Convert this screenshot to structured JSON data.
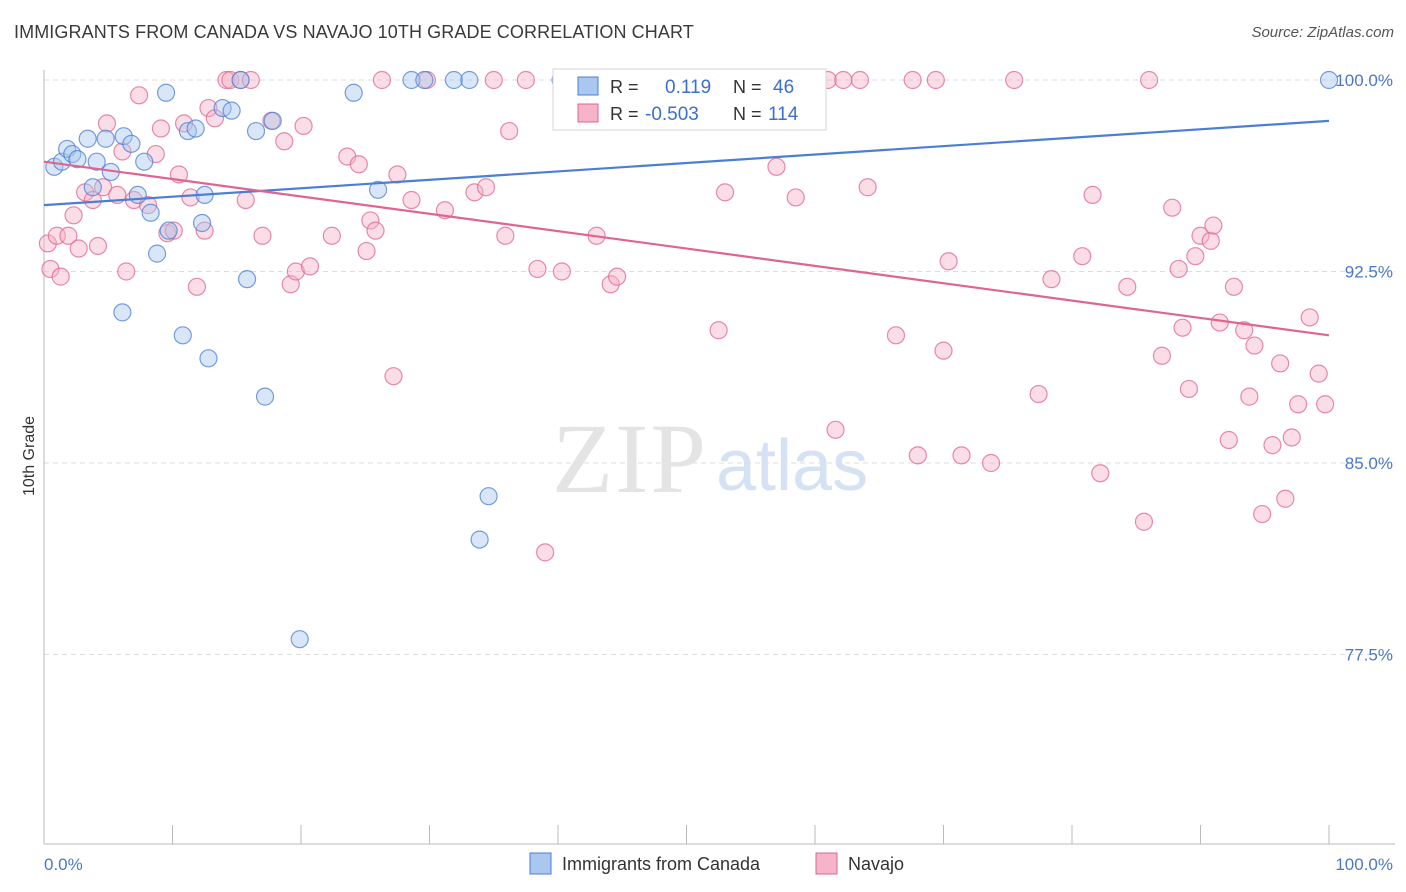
{
  "title": "IMMIGRANTS FROM CANADA VS NAVAJO 10TH GRADE CORRELATION CHART",
  "source": "Source: ZipAtlas.com",
  "watermark": {
    "zip": "ZIP",
    "atlas": "atlas"
  },
  "colors": {
    "blue": "#4a7fd4",
    "blue_fill": "#aac8ee",
    "pink": "#e06492",
    "pink_fill": "#f5b4c8",
    "grid": "#dddddd",
    "axis_label": "#4a78c8"
  },
  "legend": {
    "r_label": "R =",
    "n_label": "N =",
    "rows": [
      {
        "r": "0.119",
        "n": "46"
      },
      {
        "r": "-0.503",
        "n": "114"
      }
    ]
  },
  "chart_data": {
    "type": "scatter",
    "title": "IMMIGRANTS FROM CANADA VS NAVAJO 10TH GRADE CORRELATION CHART",
    "xlabel": "",
    "ylabel": "10th Grade",
    "xlim": [
      0,
      100
    ],
    "ylim": [
      70.0,
      100.8
    ],
    "x_tick_labels": [
      "0.0%",
      "100.0%"
    ],
    "y_ticks": [
      77.5,
      85.0,
      92.5,
      100.0
    ],
    "y_tick_labels": [
      "77.5%",
      "85.0%",
      "92.5%",
      "100.0%"
    ],
    "grid": true,
    "legend_position": "top-center",
    "series": [
      {
        "name": "Immigrants from Canada",
        "color": "#4a7fd4",
        "trend": {
          "x": [
            0,
            100
          ],
          "y": [
            95.1,
            98.4
          ]
        },
        "points": [
          [
            0.8,
            96.6
          ],
          [
            1.4,
            96.8
          ],
          [
            1.8,
            97.3
          ],
          [
            2.2,
            97.1
          ],
          [
            2.6,
            96.9
          ],
          [
            3.4,
            97.7
          ],
          [
            3.8,
            95.8
          ],
          [
            4.1,
            96.8
          ],
          [
            4.8,
            97.7
          ],
          [
            5.2,
            96.4
          ],
          [
            6.2,
            97.8
          ],
          [
            6.8,
            97.5
          ],
          [
            7.3,
            95.5
          ],
          [
            7.8,
            96.8
          ],
          [
            8.3,
            94.8
          ],
          [
            8.8,
            93.2
          ],
          [
            9.5,
            99.5
          ],
          [
            9.7,
            94.1
          ],
          [
            10.8,
            90.0
          ],
          [
            11.2,
            98.0
          ],
          [
            11.8,
            98.1
          ],
          [
            12.3,
            94.4
          ],
          [
            12.5,
            95.5
          ],
          [
            12.8,
            89.1
          ],
          [
            13.9,
            98.9
          ],
          [
            14.6,
            98.8
          ],
          [
            15.3,
            100.0
          ],
          [
            15.8,
            92.2
          ],
          [
            16.5,
            98.0
          ],
          [
            17.2,
            87.6
          ],
          [
            17.8,
            98.4
          ],
          [
            19.9,
            78.1
          ],
          [
            24.1,
            99.5
          ],
          [
            26.0,
            95.7
          ],
          [
            28.6,
            100.0
          ],
          [
            29.6,
            100.0
          ],
          [
            31.9,
            100.0
          ],
          [
            33.1,
            100.0
          ],
          [
            33.9,
            82.0
          ],
          [
            34.6,
            83.7
          ],
          [
            6.1,
            90.9
          ],
          [
            40.2,
            100.0
          ],
          [
            42.5,
            100.0
          ],
          [
            47.4,
            100.0
          ],
          [
            52.0,
            100.0
          ],
          [
            100.0,
            100.0
          ]
        ]
      },
      {
        "name": "Navajo",
        "color": "#e06492",
        "trend": {
          "x": [
            0,
            100
          ],
          "y": [
            96.8,
            90.0
          ]
        },
        "points": [
          [
            0.3,
            93.6
          ],
          [
            0.5,
            92.6
          ],
          [
            1.0,
            93.9
          ],
          [
            1.3,
            92.3
          ],
          [
            1.9,
            93.9
          ],
          [
            2.3,
            94.7
          ],
          [
            2.7,
            93.4
          ],
          [
            3.2,
            95.6
          ],
          [
            3.8,
            95.3
          ],
          [
            4.2,
            93.5
          ],
          [
            4.6,
            95.8
          ],
          [
            4.9,
            98.3
          ],
          [
            5.7,
            95.5
          ],
          [
            6.1,
            97.2
          ],
          [
            6.4,
            92.5
          ],
          [
            7.0,
            95.3
          ],
          [
            7.4,
            99.4
          ],
          [
            8.1,
            95.1
          ],
          [
            8.7,
            97.1
          ],
          [
            9.1,
            98.1
          ],
          [
            9.6,
            94.0
          ],
          [
            10.1,
            94.1
          ],
          [
            10.5,
            96.3
          ],
          [
            10.9,
            98.3
          ],
          [
            11.4,
            95.4
          ],
          [
            11.9,
            91.9
          ],
          [
            12.5,
            94.1
          ],
          [
            12.8,
            98.9
          ],
          [
            13.3,
            98.5
          ],
          [
            14.2,
            100.0
          ],
          [
            14.5,
            100.0
          ],
          [
            15.3,
            100.0
          ],
          [
            15.7,
            95.3
          ],
          [
            16.1,
            100.0
          ],
          [
            17.0,
            93.9
          ],
          [
            17.7,
            98.4
          ],
          [
            18.7,
            97.6
          ],
          [
            19.2,
            92.0
          ],
          [
            19.6,
            92.5
          ],
          [
            20.2,
            98.2
          ],
          [
            20.7,
            92.7
          ],
          [
            22.4,
            93.9
          ],
          [
            23.6,
            97.0
          ],
          [
            24.5,
            96.7
          ],
          [
            25.1,
            93.3
          ],
          [
            25.4,
            94.5
          ],
          [
            25.8,
            94.1
          ],
          [
            26.3,
            100.0
          ],
          [
            27.2,
            88.4
          ],
          [
            27.5,
            96.3
          ],
          [
            28.6,
            95.3
          ],
          [
            29.8,
            100.0
          ],
          [
            31.2,
            94.9
          ],
          [
            33.5,
            95.6
          ],
          [
            34.4,
            95.8
          ],
          [
            35.0,
            100.0
          ],
          [
            35.9,
            93.9
          ],
          [
            36.2,
            98.0
          ],
          [
            37.5,
            100.0
          ],
          [
            38.4,
            92.6
          ],
          [
            39.0,
            81.5
          ],
          [
            40.3,
            92.5
          ],
          [
            42.8,
            100.0
          ],
          [
            43.0,
            93.9
          ],
          [
            44.1,
            92.0
          ],
          [
            44.6,
            92.3
          ],
          [
            46.9,
            100.0
          ],
          [
            47.6,
            100.0
          ],
          [
            52.5,
            90.2
          ],
          [
            53.0,
            95.6
          ],
          [
            54.3,
            100.0
          ],
          [
            57.0,
            96.6
          ],
          [
            58.5,
            95.4
          ],
          [
            61.0,
            100.0
          ],
          [
            61.6,
            86.3
          ],
          [
            62.2,
            100.0
          ],
          [
            63.5,
            100.0
          ],
          [
            64.1,
            95.8
          ],
          [
            66.3,
            90.0
          ],
          [
            67.6,
            100.0
          ],
          [
            68.0,
            85.3
          ],
          [
            69.4,
            100.0
          ],
          [
            70.0,
            89.4
          ],
          [
            70.4,
            92.9
          ],
          [
            71.4,
            85.3
          ],
          [
            73.7,
            85.0
          ],
          [
            75.5,
            100.0
          ],
          [
            77.4,
            87.7
          ],
          [
            78.4,
            92.2
          ],
          [
            80.8,
            93.1
          ],
          [
            81.6,
            95.5
          ],
          [
            82.2,
            84.6
          ],
          [
            84.3,
            91.9
          ],
          [
            85.6,
            82.7
          ],
          [
            86.0,
            100.0
          ],
          [
            87.0,
            89.2
          ],
          [
            87.8,
            95.0
          ],
          [
            88.3,
            92.6
          ],
          [
            88.6,
            90.3
          ],
          [
            89.1,
            87.9
          ],
          [
            89.6,
            93.1
          ],
          [
            90.0,
            93.9
          ],
          [
            90.8,
            93.7
          ],
          [
            91.0,
            94.3
          ],
          [
            91.5,
            90.5
          ],
          [
            92.2,
            85.9
          ],
          [
            92.6,
            91.9
          ],
          [
            93.4,
            90.2
          ],
          [
            93.8,
            87.6
          ],
          [
            94.2,
            89.6
          ],
          [
            94.8,
            83.0
          ],
          [
            95.6,
            85.7
          ],
          [
            96.2,
            88.9
          ],
          [
            96.6,
            83.6
          ],
          [
            97.1,
            86.0
          ],
          [
            97.6,
            87.3
          ],
          [
            98.5,
            90.7
          ],
          [
            99.2,
            88.5
          ],
          [
            99.7,
            87.3
          ]
        ]
      }
    ]
  }
}
